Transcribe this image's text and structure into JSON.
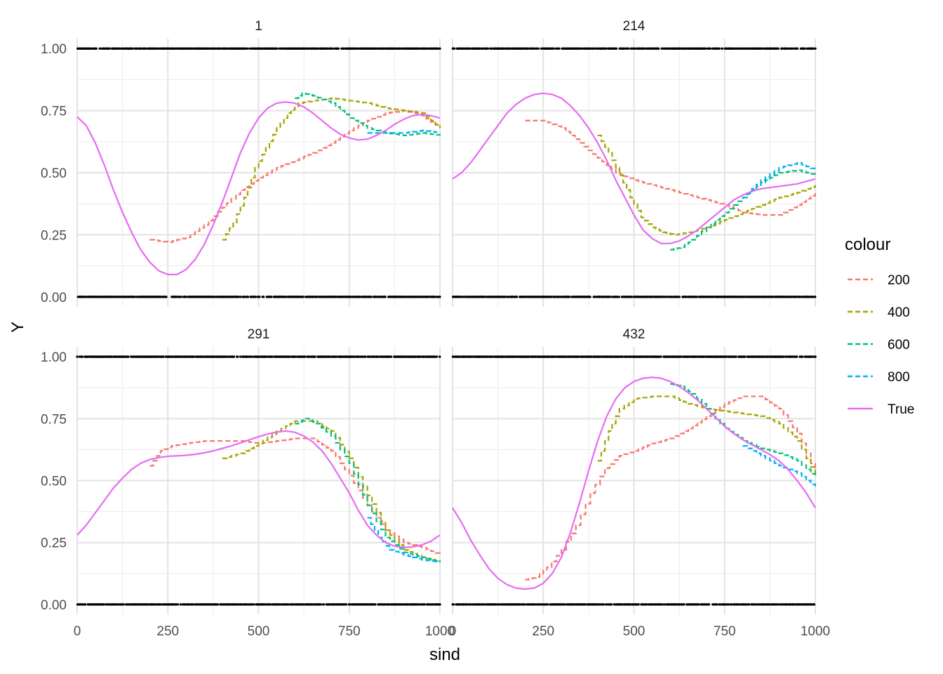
{
  "chart_data": {
    "type": "line",
    "facet_by": "id",
    "xlabel": "sind",
    "ylabel": "Y",
    "xlim": [
      0,
      1000
    ],
    "ylim": [
      -0.04,
      1.04
    ],
    "x_ticks": [
      0,
      250,
      500,
      750,
      1000
    ],
    "x_tick_labels": [
      "0",
      "250",
      "500",
      "750",
      "1000"
    ],
    "y_ticks": [
      0,
      0.25,
      0.5,
      0.75,
      1.0
    ],
    "y_tick_labels": [
      "0.00",
      "0.25",
      "0.50",
      "0.75",
      "1.00"
    ],
    "grid": true,
    "legend": {
      "title": "colour",
      "placement": "right",
      "entries": [
        {
          "label": "200",
          "color": "#F8766D",
          "dash": "dashed"
        },
        {
          "label": "400",
          "color": "#A3A500",
          "dash": "dashed"
        },
        {
          "label": "600",
          "color": "#00BF7D",
          "dash": "dashed"
        },
        {
          "label": "800",
          "color": "#00B0F6",
          "dash": "dashed"
        },
        {
          "label": "True",
          "color": "#E76BF3",
          "dash": "solid"
        }
      ]
    },
    "panels": [
      {
        "title": "1",
        "series": [
          {
            "name": "200",
            "x": [
              200,
              250,
              300,
              350,
              400,
              450,
              500,
              550,
              600,
              650,
              700,
              750,
              800,
              850,
              900,
              950,
              1000
            ],
            "y": [
              0.23,
              0.22,
              0.24,
              0.29,
              0.36,
              0.43,
              0.48,
              0.52,
              0.55,
              0.58,
              0.62,
              0.67,
              0.71,
              0.74,
              0.75,
              0.73,
              0.68
            ]
          },
          {
            "name": "400",
            "x": [
              400,
              430,
              460,
              490,
              520,
              550,
              580,
              610,
              650,
              700,
              750,
              800,
              850,
              900,
              950,
              1000
            ],
            "y": [
              0.23,
              0.3,
              0.4,
              0.52,
              0.6,
              0.68,
              0.74,
              0.78,
              0.79,
              0.8,
              0.79,
              0.78,
              0.76,
              0.75,
              0.74,
              0.68
            ]
          },
          {
            "name": "600",
            "x": [
              600,
              620,
              650,
              700,
              750,
              800,
              850,
              900,
              950,
              1000
            ],
            "y": [
              0.8,
              0.82,
              0.81,
              0.78,
              0.72,
              0.68,
              0.66,
              0.65,
              0.66,
              0.65
            ]
          },
          {
            "name": "800",
            "x": [
              800,
              850,
              900,
              950,
              1000
            ],
            "y": [
              0.66,
              0.66,
              0.66,
              0.67,
              0.66
            ]
          },
          {
            "name": "True",
            "x": [
              0,
              25,
              50,
              75,
              100,
              125,
              150,
              175,
              200,
              225,
              250,
              275,
              300,
              325,
              350,
              375,
              400,
              425,
              450,
              475,
              500,
              525,
              550,
              575,
              600,
              625,
              650,
              675,
              700,
              725,
              750,
              775,
              800,
              825,
              850,
              875,
              900,
              925,
              950,
              975,
              1000
            ],
            "y": [
              0.725,
              0.69,
              0.62,
              0.53,
              0.43,
              0.34,
              0.26,
              0.19,
              0.14,
              0.105,
              0.09,
              0.09,
              0.11,
              0.15,
              0.21,
              0.29,
              0.38,
              0.48,
              0.58,
              0.66,
              0.72,
              0.76,
              0.78,
              0.785,
              0.78,
              0.765,
              0.74,
              0.71,
              0.68,
              0.655,
              0.64,
              0.632,
              0.635,
              0.65,
              0.67,
              0.695,
              0.715,
              0.73,
              0.735,
              0.73,
              0.72
            ]
          }
        ]
      },
      {
        "title": "214",
        "series": [
          {
            "name": "200",
            "x": [
              200,
              250,
              300,
              350,
              400,
              450,
              500,
              550,
              600,
              650,
              700,
              750,
              800,
              850,
              900,
              950,
              1000
            ],
            "y": [
              0.71,
              0.71,
              0.68,
              0.62,
              0.56,
              0.5,
              0.47,
              0.45,
              0.43,
              0.41,
              0.39,
              0.37,
              0.34,
              0.33,
              0.33,
              0.37,
              0.42
            ]
          },
          {
            "name": "400",
            "x": [
              400,
              430,
              460,
              490,
              520,
              550,
              580,
              610,
              650,
              700,
              750,
              800,
              850,
              900,
              950,
              1000
            ],
            "y": [
              0.65,
              0.58,
              0.49,
              0.4,
              0.32,
              0.28,
              0.26,
              0.25,
              0.26,
              0.28,
              0.31,
              0.34,
              0.37,
              0.4,
              0.42,
              0.45
            ]
          },
          {
            "name": "600",
            "x": [
              600,
              630,
              660,
              700,
              750,
              800,
              850,
              900,
              950,
              1000
            ],
            "y": [
              0.19,
              0.2,
              0.23,
              0.28,
              0.34,
              0.4,
              0.46,
              0.5,
              0.51,
              0.49
            ]
          },
          {
            "name": "800",
            "x": [
              800,
              850,
              900,
              950,
              1000
            ],
            "y": [
              0.4,
              0.47,
              0.52,
              0.54,
              0.51
            ]
          },
          {
            "name": "True",
            "x": [
              0,
              25,
              50,
              75,
              100,
              125,
              150,
              175,
              200,
              225,
              250,
              275,
              300,
              325,
              350,
              375,
              400,
              425,
              450,
              475,
              500,
              525,
              550,
              575,
              600,
              625,
              650,
              675,
              700,
              725,
              750,
              775,
              800,
              825,
              850,
              875,
              900,
              925,
              950,
              975,
              1000
            ],
            "y": [
              0.475,
              0.5,
              0.54,
              0.59,
              0.64,
              0.69,
              0.74,
              0.775,
              0.8,
              0.815,
              0.82,
              0.815,
              0.8,
              0.77,
              0.73,
              0.68,
              0.62,
              0.55,
              0.47,
              0.4,
              0.33,
              0.27,
              0.235,
              0.215,
              0.215,
              0.225,
              0.245,
              0.27,
              0.3,
              0.33,
              0.36,
              0.39,
              0.41,
              0.425,
              0.435,
              0.44,
              0.445,
              0.45,
              0.455,
              0.465,
              0.475
            ]
          }
        ]
      },
      {
        "title": "291",
        "series": [
          {
            "name": "200",
            "x": [
              200,
              230,
              260,
              300,
              350,
              400,
              450,
              500,
              550,
              600,
              650,
              700,
              750,
              800,
              850,
              900,
              950,
              1000
            ],
            "y": [
              0.56,
              0.62,
              0.64,
              0.65,
              0.66,
              0.66,
              0.66,
              0.65,
              0.66,
              0.67,
              0.67,
              0.62,
              0.52,
              0.4,
              0.3,
              0.25,
              0.23,
              0.2
            ]
          },
          {
            "name": "400",
            "x": [
              400,
              450,
              500,
              550,
              600,
              650,
              700,
              750,
              800,
              850,
              900,
              950,
              1000
            ],
            "y": [
              0.59,
              0.61,
              0.65,
              0.7,
              0.74,
              0.74,
              0.7,
              0.59,
              0.44,
              0.3,
              0.22,
              0.19,
              0.17
            ]
          },
          {
            "name": "600",
            "x": [
              600,
              630,
              660,
              700,
              750,
              800,
              850,
              900,
              950,
              1000
            ],
            "y": [
              0.73,
              0.75,
              0.73,
              0.68,
              0.57,
              0.4,
              0.27,
              0.21,
              0.19,
              0.17
            ]
          },
          {
            "name": "800",
            "x": [
              800,
              830,
              860,
              900,
              950,
              1000
            ],
            "y": [
              0.35,
              0.27,
              0.22,
              0.2,
              0.18,
              0.17
            ]
          },
          {
            "name": "True",
            "x": [
              0,
              25,
              50,
              75,
              100,
              125,
              150,
              175,
              200,
              225,
              250,
              275,
              300,
              325,
              350,
              375,
              400,
              425,
              450,
              475,
              500,
              525,
              550,
              575,
              600,
              625,
              650,
              675,
              700,
              725,
              750,
              775,
              800,
              825,
              850,
              875,
              900,
              925,
              950,
              975,
              1000
            ],
            "y": [
              0.28,
              0.32,
              0.37,
              0.42,
              0.47,
              0.51,
              0.545,
              0.57,
              0.585,
              0.593,
              0.598,
              0.6,
              0.602,
              0.606,
              0.612,
              0.62,
              0.63,
              0.64,
              0.652,
              0.665,
              0.677,
              0.688,
              0.696,
              0.7,
              0.695,
              0.68,
              0.655,
              0.62,
              0.57,
              0.51,
              0.45,
              0.38,
              0.32,
              0.28,
              0.25,
              0.235,
              0.23,
              0.232,
              0.24,
              0.255,
              0.28
            ]
          }
        ]
      },
      {
        "title": "432",
        "series": [
          {
            "name": "200",
            "x": [
              200,
              230,
              260,
              300,
              340,
              380,
              420,
              460,
              500,
              550,
              600,
              650,
              700,
              750,
              800,
              850,
              900,
              950,
              1000
            ],
            "y": [
              0.1,
              0.11,
              0.15,
              0.22,
              0.32,
              0.45,
              0.55,
              0.6,
              0.62,
              0.65,
              0.67,
              0.71,
              0.76,
              0.81,
              0.84,
              0.84,
              0.79,
              0.69,
              0.53
            ]
          },
          {
            "name": "400",
            "x": [
              400,
              430,
              460,
              500,
              550,
              600,
              650,
              700,
              750,
              800,
              850,
              900,
              950,
              1000
            ],
            "y": [
              0.58,
              0.7,
              0.79,
              0.83,
              0.84,
              0.84,
              0.81,
              0.79,
              0.78,
              0.77,
              0.76,
              0.73,
              0.66,
              0.52
            ]
          },
          {
            "name": "600",
            "x": [
              600,
              630,
              660,
              700,
              750,
              800,
              850,
              900,
              950,
              1000
            ],
            "y": [
              0.89,
              0.88,
              0.85,
              0.79,
              0.71,
              0.66,
              0.63,
              0.61,
              0.58,
              0.51
            ]
          },
          {
            "name": "800",
            "x": [
              800,
              850,
              900,
              950,
              1000
            ],
            "y": [
              0.64,
              0.6,
              0.56,
              0.53,
              0.47
            ]
          },
          {
            "name": "True",
            "x": [
              0,
              25,
              50,
              75,
              100,
              125,
              150,
              175,
              200,
              225,
              250,
              275,
              300,
              325,
              350,
              375,
              400,
              425,
              450,
              475,
              500,
              525,
              550,
              575,
              600,
              625,
              650,
              675,
              700,
              725,
              750,
              775,
              800,
              825,
              850,
              875,
              900,
              925,
              950,
              975,
              1000
            ],
            "y": [
              0.39,
              0.33,
              0.26,
              0.2,
              0.145,
              0.105,
              0.08,
              0.066,
              0.062,
              0.066,
              0.085,
              0.125,
              0.19,
              0.29,
              0.41,
              0.54,
              0.66,
              0.76,
              0.83,
              0.875,
              0.9,
              0.913,
              0.917,
              0.913,
              0.9,
              0.88,
              0.855,
              0.825,
              0.79,
              0.755,
              0.72,
              0.69,
              0.665,
              0.645,
              0.625,
              0.605,
              0.58,
              0.545,
              0.5,
              0.45,
              0.39
            ]
          }
        ]
      }
    ]
  }
}
